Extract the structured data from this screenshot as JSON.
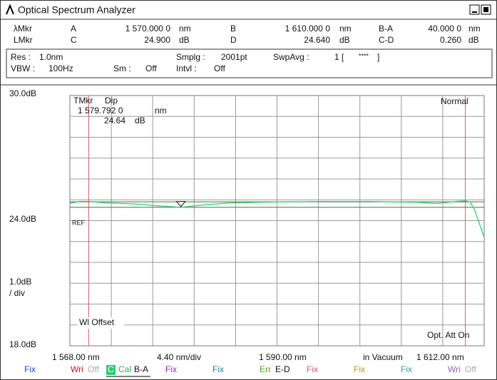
{
  "window": {
    "title": "Optical Spectrum Analyzer"
  },
  "markers": {
    "row1": {
      "name": "λMkr",
      "a": "A",
      "a_value": {
        "value": 1570,
        "label": "1 570.000 0"
      },
      "a_unit": "nm",
      "b": "B",
      "b_value": {
        "value": 1610,
        "label": "1 610.000 0"
      },
      "b_unit": "nm",
      "diff": "B-A",
      "diff_value": "40.000 0",
      "diff_unit": "nm"
    },
    "row2": {
      "name": "LMkr",
      "c": "C",
      "c_value": {
        "value": 24.9,
        "label": "24.900"
      },
      "c_unit": "dB",
      "d": "D",
      "d_value": {
        "value": 24.64,
        "label": "24.640"
      },
      "d_unit": "dB",
      "diff": "C-D",
      "diff_value": "0.260",
      "diff_unit": "dB"
    }
  },
  "settings": {
    "res_label": "Res :",
    "res": "1.0nm",
    "smplg_label": "Smplg :",
    "smplg": "2001pt",
    "swpavg_label": "SwpAvg :",
    "swpavg": "1 [",
    "swpavg_stars": "****",
    "swpavg_end": "]",
    "vbw_label": "VBW :",
    "vbw": "100Hz",
    "sm_label": "Sm :",
    "sm": "Off",
    "intvl_label": "Intvl :",
    "intvl": "Off"
  },
  "plot": {
    "y_top": {
      "value": 30,
      "label": "30.0dB"
    },
    "y_ref": {
      "value": 24,
      "label": "24.0dB"
    },
    "y_div": {
      "value": 1,
      "label": "1.0dB"
    },
    "y_div_unit": "/ div",
    "y_bottom": {
      "value": 18,
      "label": "18.0dB"
    },
    "x_start": {
      "value": 1568,
      "label": "1 568.00 nm"
    },
    "x_div": {
      "value": 4.4,
      "label": "4.40 nm/div"
    },
    "x_center": {
      "value": 1590,
      "label": "1 590.00 nm"
    },
    "medium": "in Vacuum",
    "x_stop": {
      "value": 1612,
      "label": "1 612.00 nm"
    },
    "tmkr": "TMkr",
    "tmkr_mode": "Dip",
    "tmkr_wavelength": {
      "value": 1579.792,
      "label": "1 579.792 0"
    },
    "tmkr_wl_unit": "nm",
    "tmkr_level": {
      "value": 24.64,
      "label": "24.64"
    },
    "tmkr_level_unit": "dB",
    "mode": "Normal",
    "ref": "REF",
    "wl_offset": "Wl Offset",
    "att": "Opt. Att On"
  },
  "trace": {
    "x": [
      1568,
      1569,
      1570,
      1572,
      1575,
      1577,
      1579.792,
      1582,
      1585,
      1590,
      1595,
      1600,
      1605,
      1607,
      1609,
      1610,
      1610.5,
      1611,
      1612
    ],
    "y": [
      24.83,
      24.92,
      24.92,
      24.85,
      24.8,
      24.72,
      24.64,
      24.75,
      24.85,
      24.9,
      24.92,
      24.92,
      24.88,
      24.82,
      24.92,
      24.95,
      24.9,
      24.5,
      23.2
    ]
  },
  "status": [
    [
      "Fix"
    ],
    [
      "Wri",
      "Off"
    ],
    [
      "C",
      "Cal",
      "B-A"
    ],
    [
      "Fix"
    ],
    [
      "Fix"
    ],
    [
      "Err",
      "E-D"
    ],
    [
      "Fix"
    ],
    [
      "Fix"
    ],
    [
      "Fix"
    ],
    [
      "Wri",
      "Off"
    ]
  ]
}
